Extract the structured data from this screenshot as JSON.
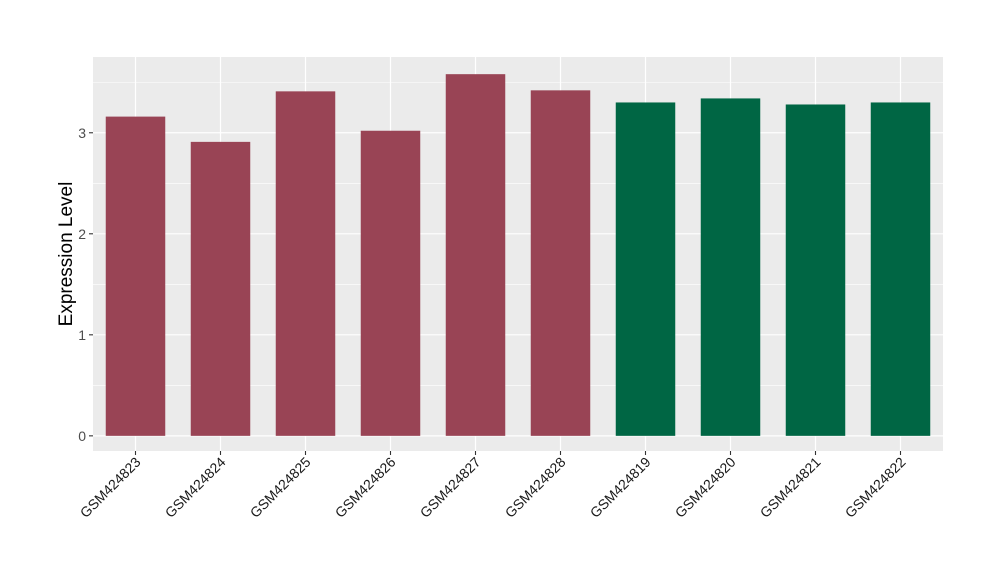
{
  "chart_data": {
    "type": "bar",
    "title": "",
    "xlabel": "",
    "ylabel": "Expression Level",
    "ylim": [
      -0.15,
      3.75
    ],
    "yticks": [
      0,
      1,
      2,
      3
    ],
    "grid": true,
    "categories": [
      "GSM424823",
      "GSM424824",
      "GSM424825",
      "GSM424826",
      "GSM424827",
      "GSM424828",
      "GSM424819",
      "GSM424820",
      "GSM424821",
      "GSM424822"
    ],
    "values": [
      3.16,
      2.91,
      3.41,
      3.02,
      3.58,
      3.42,
      3.3,
      3.34,
      3.28,
      3.3
    ],
    "bar_colors": [
      "#994455",
      "#994455",
      "#994455",
      "#994455",
      "#994455",
      "#994455",
      "#006644",
      "#006644",
      "#006644",
      "#006644"
    ],
    "panel_background": "#ebebeb",
    "grid_color": "#ffffff"
  }
}
